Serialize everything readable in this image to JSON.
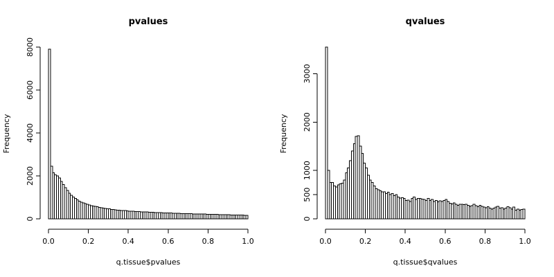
{
  "chart_data": [
    {
      "type": "bar",
      "title": "pvalues",
      "xlabel": "q.tissue$pvalues",
      "ylabel": "Frequency",
      "xlim": [
        0,
        1
      ],
      "ylim": [
        0,
        8000
      ],
      "bin_width": 0.01,
      "xticks": [
        0.0,
        0.2,
        0.4,
        0.6,
        0.8,
        1.0
      ],
      "xtick_labels": [
        "0.0",
        "0.2",
        "0.4",
        "0.6",
        "0.8",
        "1.0"
      ],
      "yticks": [
        0,
        2000,
        4000,
        6000,
        8000
      ],
      "ytick_labels": [
        "0",
        "2000",
        "4000",
        "6000",
        "8000"
      ],
      "values": [
        7900,
        2450,
        2150,
        2050,
        2000,
        1900,
        1750,
        1600,
        1450,
        1320,
        1200,
        1100,
        1020,
        950,
        880,
        820,
        780,
        740,
        710,
        680,
        650,
        620,
        600,
        580,
        560,
        540,
        520,
        500,
        490,
        470,
        460,
        440,
        430,
        420,
        410,
        400,
        390,
        385,
        380,
        370,
        360,
        355,
        350,
        345,
        340,
        335,
        330,
        325,
        320,
        315,
        310,
        305,
        300,
        298,
        295,
        290,
        285,
        282,
        280,
        275,
        272,
        270,
        265,
        262,
        260,
        255,
        250,
        248,
        245,
        240,
        238,
        235,
        232,
        230,
        228,
        225,
        222,
        220,
        218,
        215,
        212,
        210,
        208,
        205,
        202,
        200,
        198,
        195,
        192,
        190,
        188,
        185,
        182,
        180,
        178,
        175,
        172,
        170,
        168,
        165
      ]
    },
    {
      "type": "bar",
      "title": "qvalues",
      "xlabel": "q.tissue$qvalues",
      "ylabel": "Frequency",
      "xlim": [
        0,
        1
      ],
      "ylim": [
        0,
        3550
      ],
      "bin_width": 0.01,
      "xticks": [
        0.0,
        0.2,
        0.4,
        0.6,
        0.8,
        1.0
      ],
      "xtick_labels": [
        "0.0",
        "0.2",
        "0.4",
        "0.6",
        "0.8",
        "1.0"
      ],
      "yticks": [
        0,
        500,
        1000,
        2000,
        3000
      ],
      "ytick_labels": [
        "0",
        "500",
        "1000",
        "2000",
        "3000"
      ],
      "values": [
        3550,
        1000,
        750,
        750,
        680,
        660,
        700,
        720,
        740,
        800,
        950,
        1050,
        1200,
        1400,
        1550,
        1700,
        1720,
        1500,
        1350,
        1150,
        1050,
        900,
        800,
        750,
        680,
        620,
        600,
        580,
        560,
        560,
        520,
        550,
        500,
        520,
        480,
        500,
        450,
        430,
        440,
        420,
        380,
        390,
        360,
        420,
        450,
        400,
        420,
        420,
        410,
        400,
        380,
        420,
        380,
        400,
        360,
        380,
        350,
        370,
        360,
        380,
        400,
        360,
        320,
        310,
        330,
        300,
        280,
        300,
        300,
        290,
        300,
        280,
        260,
        270,
        300,
        270,
        250,
        280,
        260,
        240,
        230,
        250,
        220,
        200,
        220,
        240,
        260,
        220,
        230,
        200,
        220,
        250,
        230,
        200,
        240,
        180,
        200,
        180,
        190,
        200
      ]
    }
  ]
}
